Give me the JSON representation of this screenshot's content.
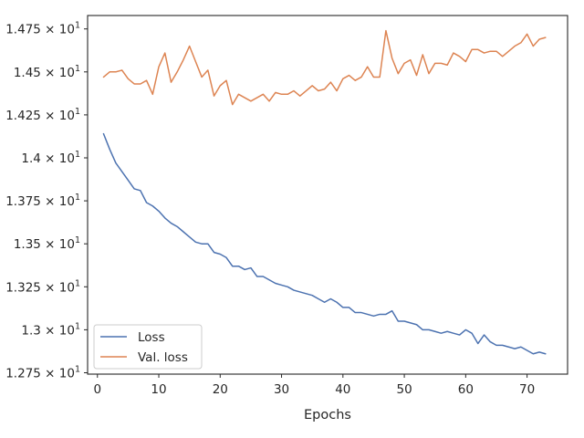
{
  "chart_data": {
    "type": "line",
    "xlabel": "Epochs",
    "ylabel": "",
    "xlim": [
      -1.6,
      76.6
    ],
    "ylim": [
      12.742,
      14.828
    ],
    "x_ticks": [
      0,
      10,
      20,
      30,
      40,
      50,
      60,
      70
    ],
    "y_ticks": [
      12.75,
      13.0,
      13.25,
      13.5,
      13.75,
      14.0,
      14.25,
      14.5,
      14.75
    ],
    "y_tick_labels": [
      {
        "mantissa": "1.275",
        "power": "1"
      },
      {
        "mantissa": "1.3",
        "power": "1"
      },
      {
        "mantissa": "1.325",
        "power": "1"
      },
      {
        "mantissa": "1.35",
        "power": "1"
      },
      {
        "mantissa": "1.375",
        "power": "1"
      },
      {
        "mantissa": "1.4",
        "power": "1"
      },
      {
        "mantissa": "1.425",
        "power": "1"
      },
      {
        "mantissa": "1.45",
        "power": "1"
      },
      {
        "mantissa": "1.475",
        "power": "1"
      }
    ],
    "tick_times": "×",
    "tick_base": "10",
    "legend_position": "lower-left",
    "series": [
      {
        "name": "Loss",
        "color": "#4c72b0",
        "x": [
          1,
          2,
          3,
          4,
          5,
          6,
          7,
          8,
          9,
          10,
          11,
          12,
          13,
          14,
          15,
          16,
          17,
          18,
          19,
          20,
          21,
          22,
          23,
          24,
          25,
          26,
          27,
          28,
          29,
          30,
          31,
          32,
          33,
          34,
          35,
          36,
          37,
          38,
          39,
          40,
          41,
          42,
          43,
          44,
          45,
          46,
          47,
          48,
          49,
          50,
          51,
          52,
          53,
          54,
          55,
          56,
          57,
          58,
          59,
          60,
          61,
          62,
          63,
          64,
          65,
          66,
          67,
          68,
          69,
          70,
          71,
          72,
          73
        ],
        "values": [
          14.14,
          14.05,
          13.97,
          13.92,
          13.87,
          13.82,
          13.81,
          13.74,
          13.72,
          13.69,
          13.65,
          13.62,
          13.6,
          13.57,
          13.54,
          13.51,
          13.5,
          13.5,
          13.45,
          13.44,
          13.42,
          13.37,
          13.37,
          13.35,
          13.36,
          13.31,
          13.31,
          13.29,
          13.27,
          13.26,
          13.25,
          13.23,
          13.22,
          13.21,
          13.2,
          13.18,
          13.16,
          13.18,
          13.16,
          13.13,
          13.13,
          13.1,
          13.1,
          13.09,
          13.08,
          13.09,
          13.09,
          13.11,
          13.05,
          13.05,
          13.04,
          13.03,
          13.0,
          13.0,
          12.99,
          12.98,
          12.99,
          12.98,
          12.97,
          13.0,
          12.98,
          12.92,
          12.97,
          12.93,
          12.91,
          12.91,
          12.9,
          12.89,
          12.9,
          12.88,
          12.86,
          12.87,
          12.86
        ]
      },
      {
        "name": "Val. loss",
        "color": "#dd8452",
        "x": [
          1,
          2,
          3,
          4,
          5,
          6,
          7,
          8,
          9,
          10,
          11,
          12,
          13,
          14,
          15,
          16,
          17,
          18,
          19,
          20,
          21,
          22,
          23,
          24,
          25,
          26,
          27,
          28,
          29,
          30,
          31,
          32,
          33,
          34,
          35,
          36,
          37,
          38,
          39,
          40,
          41,
          42,
          43,
          44,
          45,
          46,
          47,
          48,
          49,
          50,
          51,
          52,
          53,
          54,
          55,
          56,
          57,
          58,
          59,
          60,
          61,
          62,
          63,
          64,
          65,
          66,
          67,
          68,
          69,
          70,
          71,
          72,
          73
        ],
        "values": [
          14.47,
          14.5,
          14.5,
          14.51,
          14.46,
          14.43,
          14.43,
          14.45,
          14.37,
          14.53,
          14.61,
          14.44,
          14.5,
          14.57,
          14.65,
          14.56,
          14.47,
          14.51,
          14.36,
          14.42,
          14.45,
          14.31,
          14.37,
          14.35,
          14.33,
          14.35,
          14.37,
          14.33,
          14.38,
          14.37,
          14.37,
          14.39,
          14.36,
          14.39,
          14.42,
          14.39,
          14.4,
          14.44,
          14.39,
          14.46,
          14.48,
          14.45,
          14.47,
          14.53,
          14.47,
          14.47,
          14.74,
          14.58,
          14.49,
          14.55,
          14.57,
          14.48,
          14.6,
          14.49,
          14.55,
          14.55,
          14.54,
          14.61,
          14.59,
          14.56,
          14.63,
          14.63,
          14.61,
          14.62,
          14.62,
          14.59,
          14.62,
          14.65,
          14.67,
          14.72,
          14.65,
          14.69,
          14.7
        ]
      }
    ]
  }
}
